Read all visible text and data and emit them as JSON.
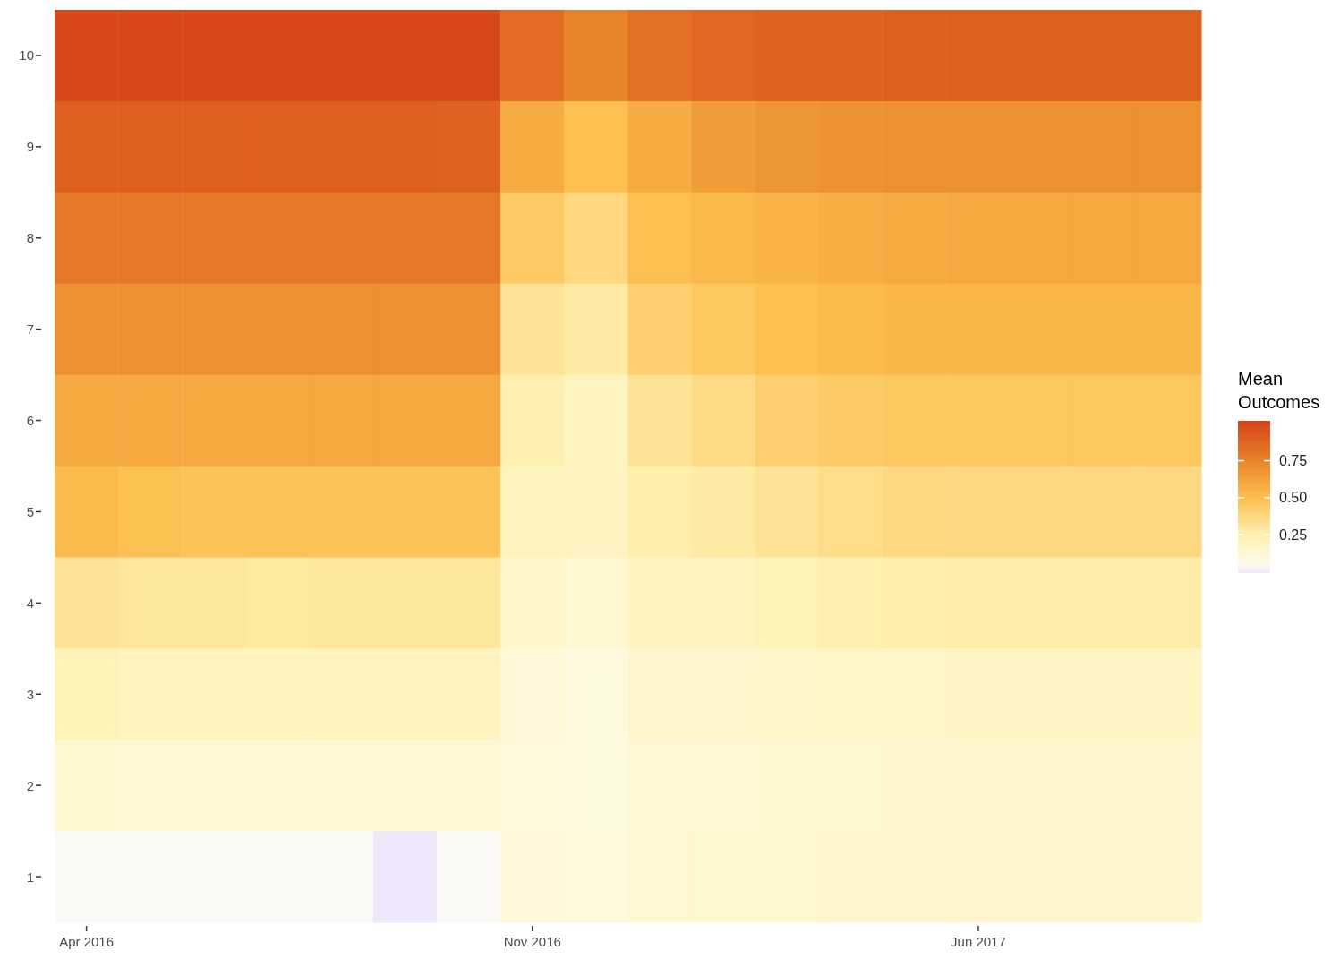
{
  "chart_data": {
    "type": "heatmap",
    "clabel": "Mean Outcomes",
    "categories": [
      "Apr 2016",
      null,
      null,
      null,
      null,
      null,
      null,
      "Nov 2016",
      null,
      null,
      null,
      null,
      null,
      null,
      "Jun 2017",
      null,
      null,
      null
    ],
    "y_categories": [
      "10",
      "9",
      "8",
      "7",
      "6",
      "5",
      "4",
      "3",
      "2",
      "1"
    ],
    "cells": [
      [
        1.0,
        1.0,
        1.0,
        1.0,
        1.0,
        1.0,
        1.0,
        0.85,
        0.75,
        0.83,
        0.87,
        0.89,
        0.89,
        0.9,
        0.9,
        0.9,
        0.9,
        0.9
      ],
      [
        0.9,
        0.9,
        0.9,
        0.9,
        0.9,
        0.9,
        0.89,
        0.58,
        0.5,
        0.58,
        0.65,
        0.68,
        0.69,
        0.7,
        0.7,
        0.7,
        0.7,
        0.7
      ],
      [
        0.8,
        0.8,
        0.8,
        0.8,
        0.8,
        0.8,
        0.8,
        0.45,
        0.38,
        0.5,
        0.53,
        0.55,
        0.57,
        0.59,
        0.6,
        0.6,
        0.6,
        0.6
      ],
      [
        0.7,
        0.7,
        0.7,
        0.7,
        0.7,
        0.7,
        0.7,
        0.32,
        0.28,
        0.42,
        0.46,
        0.5,
        0.52,
        0.54,
        0.54,
        0.54,
        0.54,
        0.54
      ],
      [
        0.6,
        0.6,
        0.6,
        0.6,
        0.6,
        0.6,
        0.6,
        0.25,
        0.2,
        0.32,
        0.36,
        0.42,
        0.44,
        0.46,
        0.46,
        0.46,
        0.46,
        0.46
      ],
      [
        0.52,
        0.49,
        0.48,
        0.48,
        0.48,
        0.48,
        0.48,
        0.2,
        0.19,
        0.26,
        0.28,
        0.32,
        0.35,
        0.37,
        0.37,
        0.37,
        0.37,
        0.37
      ],
      [
        0.32,
        0.3,
        0.3,
        0.29,
        0.3,
        0.3,
        0.3,
        0.16,
        0.14,
        0.19,
        0.2,
        0.22,
        0.25,
        0.26,
        0.27,
        0.27,
        0.27,
        0.27
      ],
      [
        0.22,
        0.2,
        0.2,
        0.2,
        0.2,
        0.2,
        0.2,
        0.12,
        0.1,
        0.15,
        0.15,
        0.16,
        0.17,
        0.17,
        0.18,
        0.18,
        0.18,
        0.18
      ],
      [
        0.14,
        0.13,
        0.13,
        0.13,
        0.13,
        0.13,
        0.13,
        0.11,
        0.1,
        0.13,
        0.13,
        0.14,
        0.14,
        0.15,
        0.15,
        0.15,
        0.15,
        0.15
      ],
      [
        0.02,
        0.02,
        0.02,
        0.02,
        0.02,
        -0.01,
        0.02,
        0.12,
        0.11,
        0.13,
        0.14,
        0.14,
        0.15,
        0.15,
        0.15,
        0.15,
        0.15,
        0.15
      ]
    ],
    "clim": [
      -0.01,
      1.02
    ],
    "cticks": [
      {
        "value": 0.25,
        "label": "0.25"
      },
      {
        "value": 0.5,
        "label": "0.50"
      },
      {
        "value": 0.75,
        "label": "0.75"
      }
    ]
  }
}
